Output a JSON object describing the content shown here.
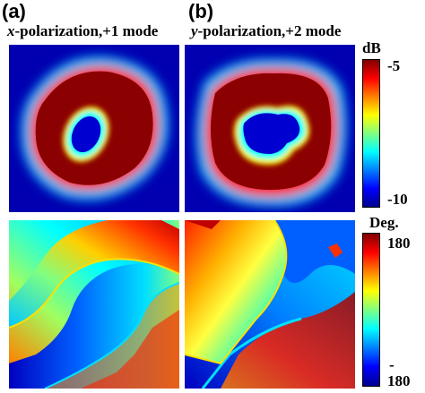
{
  "panel_labels": {
    "a": "(a)",
    "b": "(b)"
  },
  "titles": {
    "a": {
      "pol": "x",
      "rest": "-polarization,+1 mode"
    },
    "b": {
      "pol": "y",
      "rest": "-polarization,+2 mode"
    }
  },
  "colorbar_amp": {
    "unit": "dB",
    "max": "-5",
    "min": "-10"
  },
  "colorbar_phase": {
    "unit": "Deg.",
    "max": "180",
    "min_sign": "-",
    "min_val": "180"
  },
  "colors": {
    "jet": [
      "#00008f",
      "#0000ff",
      "#0080ff",
      "#00ffff",
      "#80ff80",
      "#ffff00",
      "#ff8000",
      "#ff0000",
      "#800000"
    ],
    "background": "#0000b0"
  }
}
